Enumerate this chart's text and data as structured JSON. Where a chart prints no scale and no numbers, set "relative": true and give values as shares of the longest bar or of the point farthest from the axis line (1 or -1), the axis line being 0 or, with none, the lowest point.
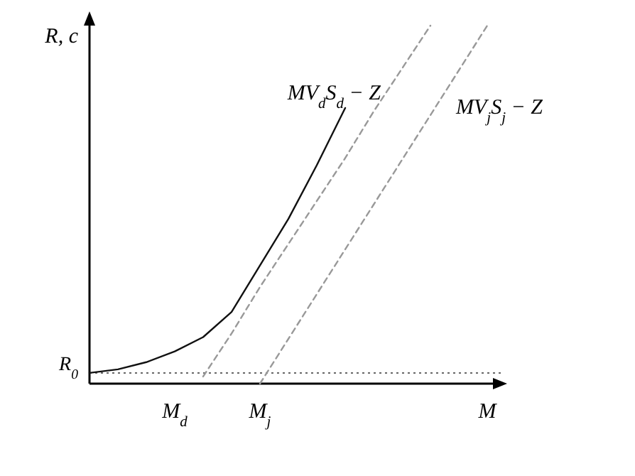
{
  "chart_data": {
    "type": "line",
    "relative": true,
    "ylabel": "R, c",
    "marker": "none",
    "categories": [
      null,
      null,
      null,
      "M$_{d}$",
      null,
      null,
      "M$_{j}$",
      null,
      null,
      null,
      null,
      null,
      null,
      null,
      "M"
    ],
    "series": [
      {
        "color": "#111111",
        "line_style": "solid",
        "values": [
          0.03,
          0.04,
          0.06,
          0.09,
          0.13,
          0.2,
          0.33,
          0.46,
          0.61,
          0.77,
          null,
          null,
          null,
          null,
          null
        ]
      },
      {
        "name": "MV$_{d}$S$_{d}$ − Z",
        "color": "#999999",
        "line_style": "dashed",
        "values": [
          null,
          null,
          null,
          null,
          0.02,
          0.14,
          0.27,
          0.39,
          0.51,
          0.63,
          0.76,
          0.88,
          1.0,
          null,
          null
        ]
      },
      {
        "name": "MV$_{j}$S$_{j}$ − Z",
        "color": "#999999",
        "line_style": "dashed",
        "values": [
          null,
          null,
          null,
          null,
          null,
          null,
          0,
          0.125,
          0.25,
          0.375,
          0.5,
          0.625,
          0.75,
          0.875,
          1.0
        ]
      }
    ],
    "ref_lines": [
      {
        "axis": "y",
        "value": 0.03,
        "label": "R$_{0}$",
        "color": "#666666",
        "line_style": "dotted"
      }
    ]
  }
}
